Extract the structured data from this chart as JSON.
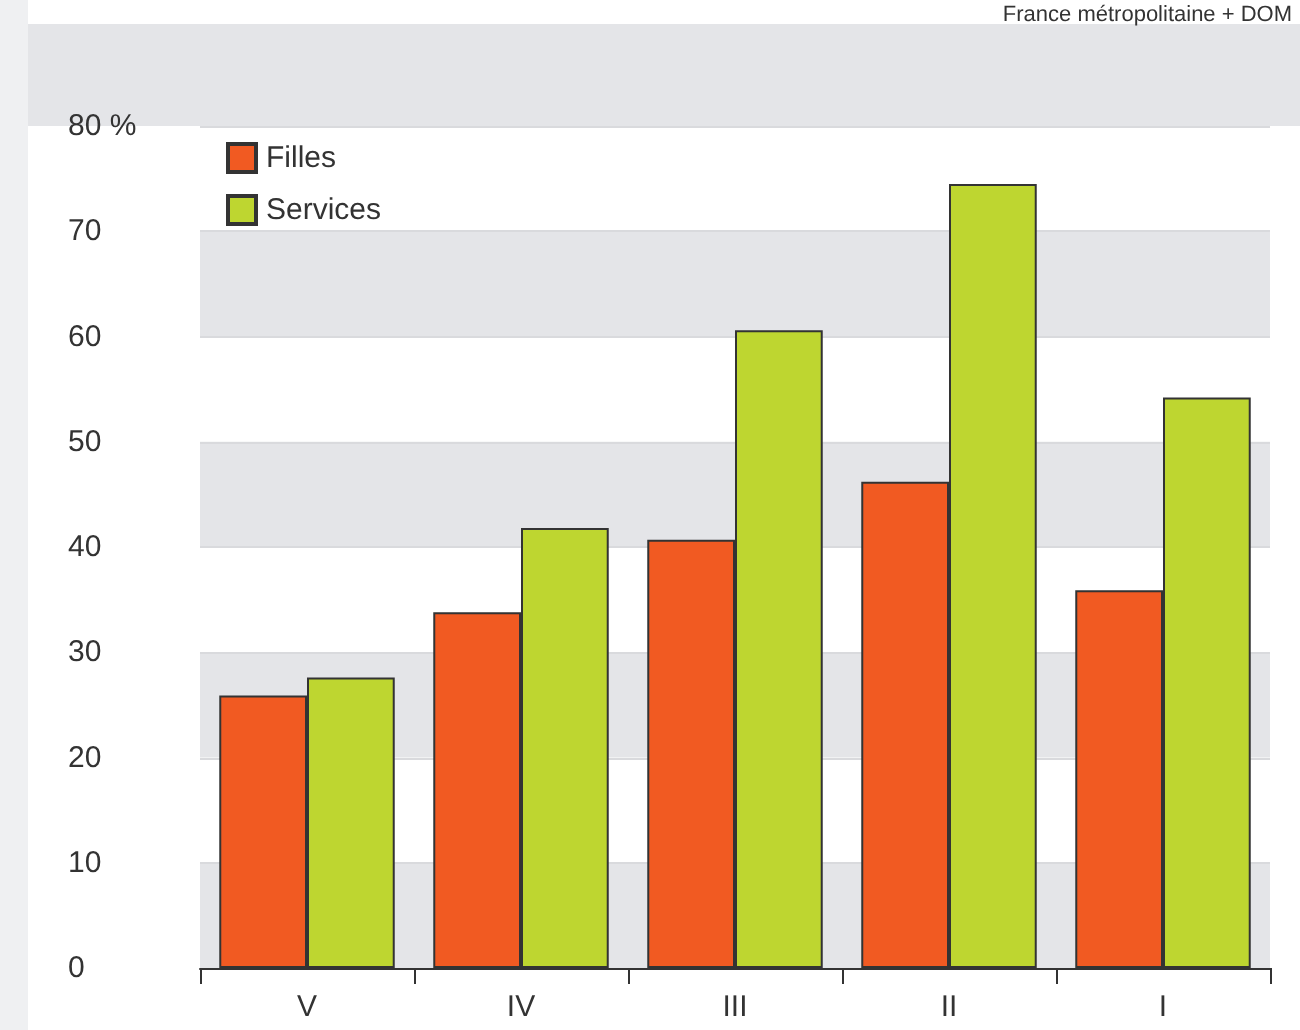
{
  "chart_data": {
    "type": "bar",
    "categories": [
      "V",
      "IV",
      "III",
      "II",
      "I"
    ],
    "series": [
      {
        "name": "Filles",
        "color": "#f15a22",
        "values": [
          25.9,
          33.8,
          40.7,
          46.2,
          35.9
        ]
      },
      {
        "name": "Services",
        "color": "#bed630",
        "values": [
          27.6,
          41.8,
          60.6,
          74.5,
          54.2
        ]
      }
    ],
    "ylim": [
      0,
      80
    ],
    "yticks": [
      0,
      10,
      20,
      30,
      40,
      50,
      60,
      70,
      {
        "value": 80,
        "label": "80 %"
      }
    ],
    "grid": true,
    "legend": "top left",
    "annotations": [
      "France métropolitaine + DOM"
    ]
  }
}
